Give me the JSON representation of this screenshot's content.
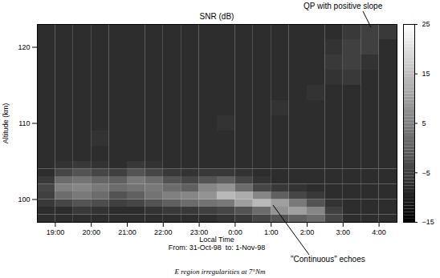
{
  "chart_data": {
    "type": "heatmap",
    "title": "SNR (dB)",
    "x_label": "Local Time",
    "x_sublabel": "From: 31-Oct-98  to: 1-Nov-98",
    "y_label": "Altitude (km)",
    "caption": "E region irregularities at 7°Nm",
    "annotations": [
      "QP with positive slope",
      "\"Continuous\" echoes"
    ],
    "xlim": [
      18.5,
      28.5
    ],
    "xticks": [
      {
        "value": 19,
        "label": "19:00"
      },
      {
        "value": 20,
        "label": "20:00"
      },
      {
        "value": 21,
        "label": "21:00"
      },
      {
        "value": 22,
        "label": "22:00"
      },
      {
        "value": 23,
        "label": "23:00"
      },
      {
        "value": 24,
        "label": "0:00"
      },
      {
        "value": 25,
        "label": "1:00"
      },
      {
        "value": 26,
        "label": "2:00"
      },
      {
        "value": 27,
        "label": "3:00"
      },
      {
        "value": 28,
        "label": "4:00"
      }
    ],
    "ylim": [
      97,
      123
    ],
    "yticks": [
      100,
      110,
      120
    ],
    "time_edges": [
      18.5,
      19,
      19.5,
      20,
      20.5,
      21,
      21.5,
      22,
      22.5,
      23,
      23.5,
      24,
      24.5,
      25,
      25.5,
      26,
      26.5,
      27,
      27.5,
      28,
      28.5
    ],
    "altitude_edges": [
      97,
      98,
      99,
      100,
      101,
      102,
      103,
      104,
      105,
      107,
      109,
      111,
      113,
      115,
      117,
      119,
      121,
      123
    ],
    "snr": [
      [
        -8,
        -8,
        -8,
        -8,
        -8,
        -8,
        -8,
        -8,
        -8,
        -8,
        -7,
        -6,
        -4,
        -2,
        0,
        2,
        -4,
        -8,
        -8,
        -8
      ],
      [
        -8,
        -8,
        -6,
        -7,
        -8,
        -8,
        -7,
        -6,
        -6,
        -5,
        -4,
        -2,
        2,
        8,
        10,
        6,
        -5,
        -8,
        -8,
        -8
      ],
      [
        -6,
        -4,
        -2,
        -3,
        -5,
        -4,
        -2,
        0,
        2,
        3,
        4,
        10,
        14,
        10,
        4,
        -2,
        -7,
        -8,
        -8,
        -8
      ],
      [
        -5,
        2,
        4,
        2,
        -2,
        0,
        3,
        5,
        6,
        8,
        14,
        12,
        6,
        0,
        -4,
        -6,
        -8,
        -8,
        -8,
        -8
      ],
      [
        -4,
        5,
        6,
        4,
        2,
        3,
        4,
        2,
        0,
        6,
        8,
        2,
        -4,
        -6,
        -7,
        -8,
        -8,
        -8,
        -8,
        -8
      ],
      [
        -6,
        2,
        3,
        1,
        0,
        4,
        2,
        -2,
        -4,
        -2,
        0,
        -4,
        -7,
        -8,
        -8,
        -8,
        -8,
        -8,
        -8,
        -8
      ],
      [
        -8,
        -4,
        -2,
        -4,
        -5,
        -2,
        -4,
        -6,
        -7,
        -6,
        -6,
        -7,
        -8,
        -8,
        -8,
        -8,
        -8,
        -8,
        -8,
        -8
      ],
      [
        -8,
        -7,
        -6,
        -7,
        -8,
        -6,
        -7,
        -8,
        -8,
        -8,
        -8,
        -8,
        -8,
        -8,
        -8,
        -8,
        -8,
        -8,
        -8,
        -8
      ],
      [
        -8,
        -8,
        -8,
        -8,
        -8,
        -8,
        -8,
        -8,
        -8,
        -8,
        -8,
        -8,
        -8,
        -8,
        -8,
        -8,
        -8,
        -8,
        -8,
        -8
      ],
      [
        -8,
        -8,
        -8,
        -7,
        -8,
        -8,
        -8,
        -8,
        -8,
        -8,
        -8,
        -8,
        -8,
        -8,
        -8,
        -8,
        -8,
        -8,
        -8,
        -8
      ],
      [
        -8,
        -8,
        -8,
        -8,
        -8,
        -8,
        -8,
        -8,
        -8,
        -8,
        -7,
        -8,
        -8,
        -8,
        -8,
        -8,
        -8,
        -8,
        -8,
        -8
      ],
      [
        -8,
        -8,
        -8,
        -8,
        -8,
        -8,
        -8,
        -8,
        -8,
        -8,
        -8,
        -8,
        -8,
        -7,
        -8,
        -8,
        -8,
        -8,
        -8,
        -8
      ],
      [
        -8,
        -8,
        -8,
        -8,
        -8,
        -8,
        -8,
        -8,
        -8,
        -8,
        -8,
        -8,
        -8,
        -8,
        -8,
        -7,
        -8,
        -8,
        -8,
        -8
      ],
      [
        -8,
        -8,
        -8,
        -8,
        -8,
        -8,
        -8,
        -8,
        -8,
        -8,
        -8,
        -8,
        -8,
        -8,
        -8,
        -8,
        -7,
        -6,
        -8,
        -8
      ],
      [
        -8,
        -8,
        -8,
        -8,
        -8,
        -8,
        -8,
        -8,
        -8,
        -8,
        -8,
        -8,
        -8,
        -8,
        -8,
        -8,
        -6,
        -5,
        -7,
        -8
      ],
      [
        -8,
        -8,
        -8,
        -8,
        -8,
        -8,
        -8,
        -8,
        -8,
        -8,
        -8,
        -8,
        -8,
        -8,
        -8,
        -8,
        -7,
        -5,
        -5,
        -8
      ],
      [
        -8,
        -8,
        -8,
        -8,
        -8,
        -8,
        -8,
        -8,
        -8,
        -8,
        -8,
        -8,
        -8,
        -8,
        -8,
        -8,
        -8,
        -6,
        -5,
        -6
      ]
    ],
    "clim": [
      -15,
      25
    ],
    "cticks": [
      25,
      15,
      5,
      -5,
      -15
    ]
  }
}
